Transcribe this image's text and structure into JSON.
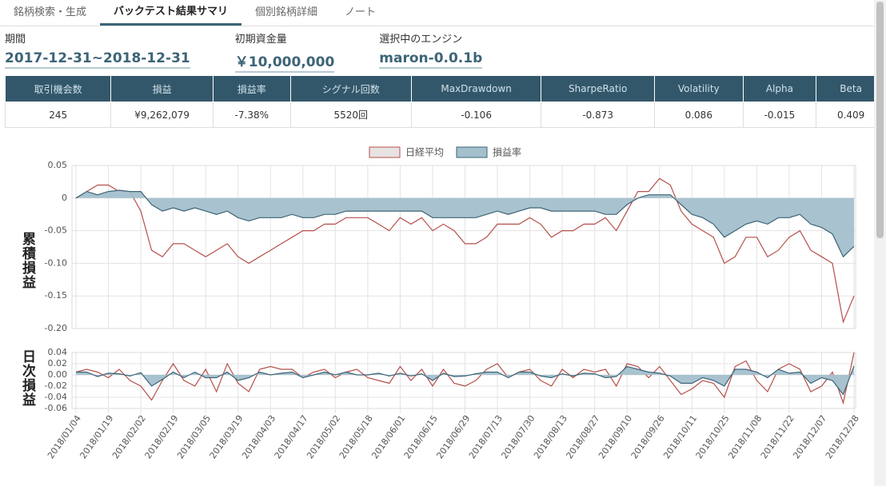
{
  "tabs": [
    "銘柄検索・生成",
    "バックテスト結果サマリ",
    "個別銘柄詳細",
    "ノート"
  ],
  "summary": [
    {
      "label": "期間",
      "value": "2017-12-31~2018-12-31"
    },
    {
      "label": "初期資金量",
      "value": "￥10,000,000"
    },
    {
      "label": "選択中のエンジン",
      "value": "maron-0.0.1b"
    }
  ],
  "table": {
    "headers": [
      "取引機会数",
      "損益",
      "損益率",
      "シグナル回数",
      "MaxDrawdown",
      "SharpeRatio",
      "Volatility",
      "Alpha",
      "Beta"
    ],
    "rows": [
      [
        "245",
        "¥9,262,079",
        "-7.38%",
        "5520回",
        "-0.106",
        "-0.873",
        "0.086",
        "-0.015",
        "0.409"
      ]
    ]
  },
  "chart_data": [
    {
      "type": "line",
      "y_label": "累積損益",
      "legend": "top",
      "grid": true,
      "ylim": [
        -0.2,
        0.05
      ],
      "yticks": [
        0.05,
        0,
        -0.05,
        {
          "value": -0.1,
          "label": "-0.10"
        },
        -0.15,
        {
          "value": -0.2,
          "label": "-0.20"
        }
      ],
      "series": [
        {
          "name": "日経平均",
          "color": "#b5504b",
          "values": [
            0,
            0.01,
            0.02,
            0.02,
            0.01,
            0.01,
            -0.02,
            -0.08,
            -0.09,
            -0.07,
            -0.07,
            -0.08,
            -0.09,
            -0.08,
            -0.07,
            -0.09,
            -0.1,
            -0.09,
            -0.08,
            -0.07,
            -0.06,
            -0.05,
            -0.05,
            -0.04,
            -0.04,
            -0.03,
            -0.03,
            -0.03,
            -0.04,
            -0.05,
            -0.03,
            -0.04,
            -0.03,
            -0.05,
            -0.04,
            -0.05,
            -0.07,
            -0.07,
            -0.06,
            -0.04,
            -0.04,
            -0.04,
            -0.03,
            -0.04,
            -0.06,
            -0.05,
            -0.05,
            -0.04,
            -0.04,
            -0.03,
            -0.05,
            -0.02,
            0.01,
            0.01,
            0.03,
            0.02,
            -0.02,
            -0.04,
            -0.05,
            -0.06,
            -0.1,
            -0.09,
            -0.06,
            -0.06,
            -0.09,
            -0.08,
            -0.06,
            -0.05,
            -0.08,
            -0.09,
            -0.1,
            -0.19,
            -0.15
          ]
        },
        {
          "name": "損益率",
          "color": "#3d6477",
          "fill": "#a3c0cc",
          "values": [
            0,
            0.01,
            0.005,
            0.01,
            0.012,
            0.01,
            0.01,
            -0.01,
            -0.02,
            -0.015,
            -0.02,
            -0.015,
            -0.02,
            -0.025,
            -0.02,
            -0.03,
            -0.035,
            -0.03,
            -0.03,
            -0.03,
            -0.025,
            -0.03,
            -0.03,
            -0.025,
            -0.025,
            -0.02,
            -0.02,
            -0.02,
            -0.02,
            -0.02,
            -0.02,
            -0.02,
            -0.02,
            -0.03,
            -0.03,
            -0.03,
            -0.03,
            -0.03,
            -0.025,
            -0.02,
            -0.025,
            -0.02,
            -0.015,
            -0.015,
            -0.02,
            -0.02,
            -0.02,
            -0.02,
            -0.02,
            -0.025,
            -0.025,
            -0.01,
            0,
            0.005,
            0.005,
            0.005,
            -0.01,
            -0.025,
            -0.03,
            -0.04,
            -0.06,
            -0.05,
            -0.04,
            -0.035,
            -0.04,
            -0.03,
            -0.03,
            -0.025,
            -0.04,
            -0.045,
            -0.055,
            -0.09,
            -0.074
          ]
        }
      ]
    },
    {
      "type": "line",
      "y_label": "日次損益",
      "grid": true,
      "ylim": [
        -0.06,
        0.04
      ],
      "yticks": [
        0.04,
        0.02,
        {
          "value": 0,
          "label": "0.00"
        },
        -0.02,
        -0.04,
        -0.06
      ],
      "categories": [
        "2018/01/04",
        null,
        null,
        "2018/01/19",
        null,
        null,
        "2018/02/02",
        null,
        null,
        "2018/02/19",
        null,
        null,
        "2018/03/05",
        null,
        null,
        "2018/03/19",
        null,
        null,
        "2018/04/03",
        null,
        null,
        "2018/04/17",
        null,
        null,
        "2018/05/02",
        null,
        null,
        "2018/05/18",
        null,
        null,
        "2018/06/01",
        null,
        null,
        "2018/06/15",
        null,
        null,
        "2018/06/29",
        null,
        null,
        "2018/07/13",
        null,
        null,
        "2018/07/30",
        null,
        null,
        "2018/08/13",
        null,
        null,
        "2018/08/27",
        null,
        null,
        "2018/09/10",
        null,
        null,
        "2018/09/26",
        null,
        null,
        "2018/10/11",
        null,
        null,
        "2018/10/25",
        null,
        null,
        "2018/11/08",
        null,
        null,
        "2018/11/22",
        null,
        null,
        "2018/12/07",
        null,
        null,
        "2018/12/28"
      ],
      "series": [
        {
          "color": "#b5504b",
          "values": [
            0.005,
            0.01,
            0.005,
            -0.005,
            0.01,
            -0.01,
            -0.02,
            -0.045,
            -0.01,
            0.02,
            -0.01,
            -0.02,
            0.01,
            -0.03,
            0.02,
            -0.015,
            -0.03,
            0.01,
            0.015,
            0.01,
            0.01,
            -0.005,
            0.005,
            0.01,
            -0.005,
            0.005,
            0.01,
            -0.005,
            -0.01,
            -0.015,
            0.015,
            -0.01,
            0.01,
            -0.02,
            0.01,
            -0.015,
            -0.02,
            -0.01,
            0.01,
            0.02,
            -0.005,
            0.005,
            0.01,
            -0.01,
            -0.02,
            0.01,
            -0.005,
            0.01,
            0.005,
            0.01,
            -0.02,
            0.02,
            0.015,
            -0.005,
            0.015,
            -0.01,
            -0.035,
            -0.025,
            -0.01,
            -0.015,
            -0.04,
            0.015,
            0.025,
            -0.01,
            -0.03,
            0.01,
            0.02,
            0.01,
            -0.03,
            -0.02,
            0.005,
            -0.05,
            0.04
          ]
        },
        {
          "color": "#3d6477",
          "fill": "#a3c0cc",
          "values": [
            0.005,
            0.005,
            -0.003,
            0.003,
            0.002,
            -0.002,
            0.004,
            -0.02,
            -0.008,
            0.005,
            -0.005,
            0.005,
            -0.005,
            -0.005,
            0.005,
            -0.01,
            -0.005,
            0.005,
            0,
            0.003,
            0.005,
            -0.005,
            0,
            0.005,
            0,
            0.005,
            0,
            0,
            0.003,
            -0.002,
            0.003,
            -0.002,
            0.002,
            -0.01,
            0.003,
            -0.003,
            -0.002,
            0.002,
            0.005,
            0.005,
            -0.005,
            0.005,
            0.005,
            -0.002,
            -0.005,
            0.002,
            -0.002,
            0.003,
            0.002,
            -0.005,
            -0.003,
            0.015,
            0.01,
            0.005,
            0.003,
            -0.002,
            -0.015,
            -0.015,
            -0.005,
            -0.01,
            -0.02,
            0.01,
            0.01,
            0.005,
            -0.005,
            0.01,
            0.003,
            0.005,
            -0.015,
            -0.005,
            -0.01,
            -0.035,
            0.016
          ]
        }
      ]
    }
  ]
}
